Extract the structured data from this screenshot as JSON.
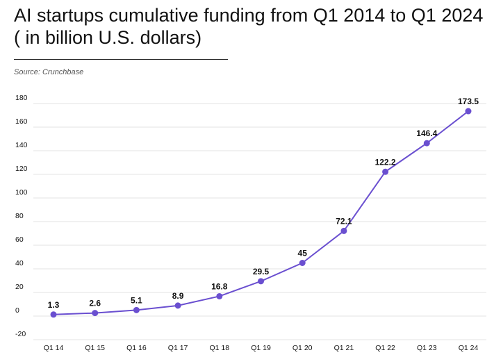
{
  "header": {
    "title_line1": "AI startups cumulative funding from Q1 2014 to Q1 2024",
    "title_line2": "( in billion U.S. dollars)",
    "source": "Source: Crunchbase"
  },
  "chart_data": {
    "type": "line",
    "title": "AI startups cumulative funding from Q1 2014 to Q1 2024 ( in billion U.S. dollars)",
    "xlabel": "",
    "ylabel": "",
    "categories": [
      "Q1 14",
      "Q1 15",
      "Q1 16",
      "Q1 17",
      "Q1 18",
      "Q1 19",
      "Q1 20",
      "Q1 21",
      "Q1 22",
      "Q1 23",
      "Q1 24"
    ],
    "series": [
      {
        "values": [
          1.3,
          2.6,
          5.1,
          8.9,
          16.8,
          29.5,
          45,
          72.1,
          122.2,
          146.4,
          173.5
        ],
        "labels": [
          "1.3",
          "2.6",
          "5.1",
          "8.9",
          "16.8",
          "29.5",
          "45",
          "72.1",
          "122.2",
          "146.4",
          "173.5"
        ]
      }
    ],
    "ylim": [
      -20,
      180
    ],
    "yticks": [
      -20,
      0,
      20,
      40,
      60,
      80,
      100,
      120,
      140,
      160,
      180
    ],
    "grid": true,
    "line_color": "#6A4FD0",
    "grid_color": "#e3e3e3"
  }
}
